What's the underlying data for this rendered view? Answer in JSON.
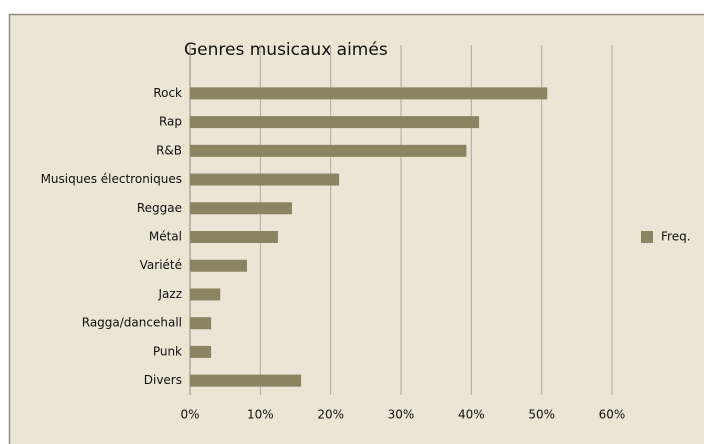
{
  "chart_data": {
    "type": "bar",
    "orientation": "horizontal",
    "title": "Genres musicaux aimés",
    "categories": [
      "Rock",
      "Rap",
      "R&B",
      "Musiques électroniques",
      "Reggae",
      "Métal",
      "Variété",
      "Jazz",
      "Ragga/dancehall",
      "Punk",
      "Divers"
    ],
    "series": [
      {
        "name": "Freq.",
        "color": "#8b8460",
        "values": [
          50.8,
          41.1,
          39.3,
          21.2,
          14.5,
          12.5,
          8.1,
          4.3,
          3,
          3,
          15.8
        ]
      }
    ],
    "xlim": [
      0,
      60
    ],
    "xticks": [
      {
        "value": 0,
        "label": "0%"
      },
      {
        "value": 10,
        "label": "10%"
      },
      {
        "value": 20,
        "label": "20%"
      },
      {
        "value": 30,
        "label": "30%"
      },
      {
        "value": 40,
        "label": "40%"
      },
      {
        "value": 50,
        "label": "50%"
      },
      {
        "value": 60,
        "label": "60%"
      }
    ],
    "grid": true,
    "legend": "right"
  }
}
